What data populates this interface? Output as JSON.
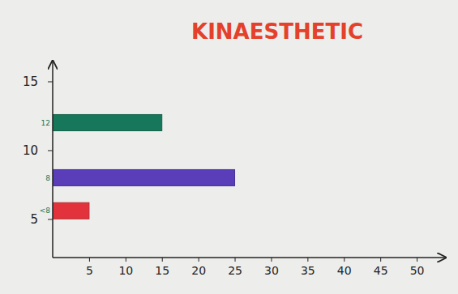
{
  "chart_data": {
    "type": "bar",
    "title": "KINAESTHETIC",
    "orientation": "horizontal",
    "categories": [
      "12",
      "8",
      "<8"
    ],
    "y": [
      12,
      8,
      5.6
    ],
    "values": [
      15,
      25,
      5
    ],
    "colors": [
      "#17775a",
      "#5a3db8",
      "#e2323c"
    ],
    "xlim": [
      0,
      54
    ],
    "xticks": [
      5,
      10,
      15,
      20,
      25,
      30,
      35,
      40,
      45,
      50
    ],
    "ylim": [
      2.2,
      16.5
    ],
    "yticks": [
      5,
      10,
      15
    ],
    "grid": false
  }
}
